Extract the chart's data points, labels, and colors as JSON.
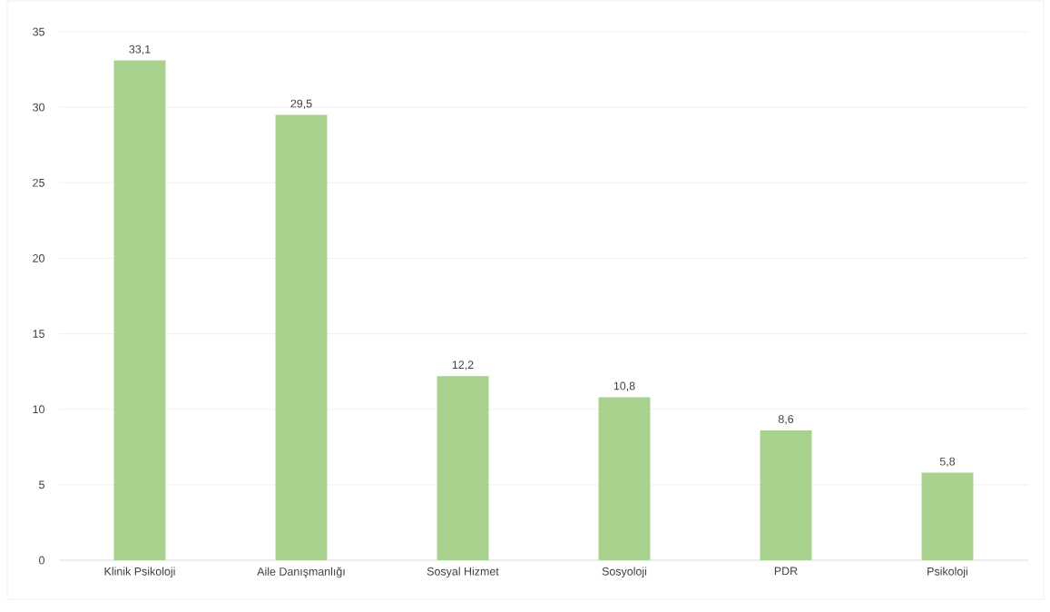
{
  "chart_data": {
    "type": "bar",
    "categories": [
      "Klinik Psikoloji",
      "Aile Danışmanlığı",
      "Sosyal Hizmet",
      "Sosyoloji",
      "PDR",
      "Psikoloji"
    ],
    "values": [
      33.1,
      29.5,
      12.2,
      10.8,
      8.6,
      5.8
    ],
    "value_labels": [
      "33,1",
      "29,5",
      "12,2",
      "10,8",
      "8,6",
      "5,8"
    ],
    "color": "#a9d18e",
    "ylim": [
      0,
      35
    ],
    "yticks": [
      0,
      5,
      10,
      15,
      20,
      25,
      30,
      35
    ],
    "grid": "y"
  }
}
